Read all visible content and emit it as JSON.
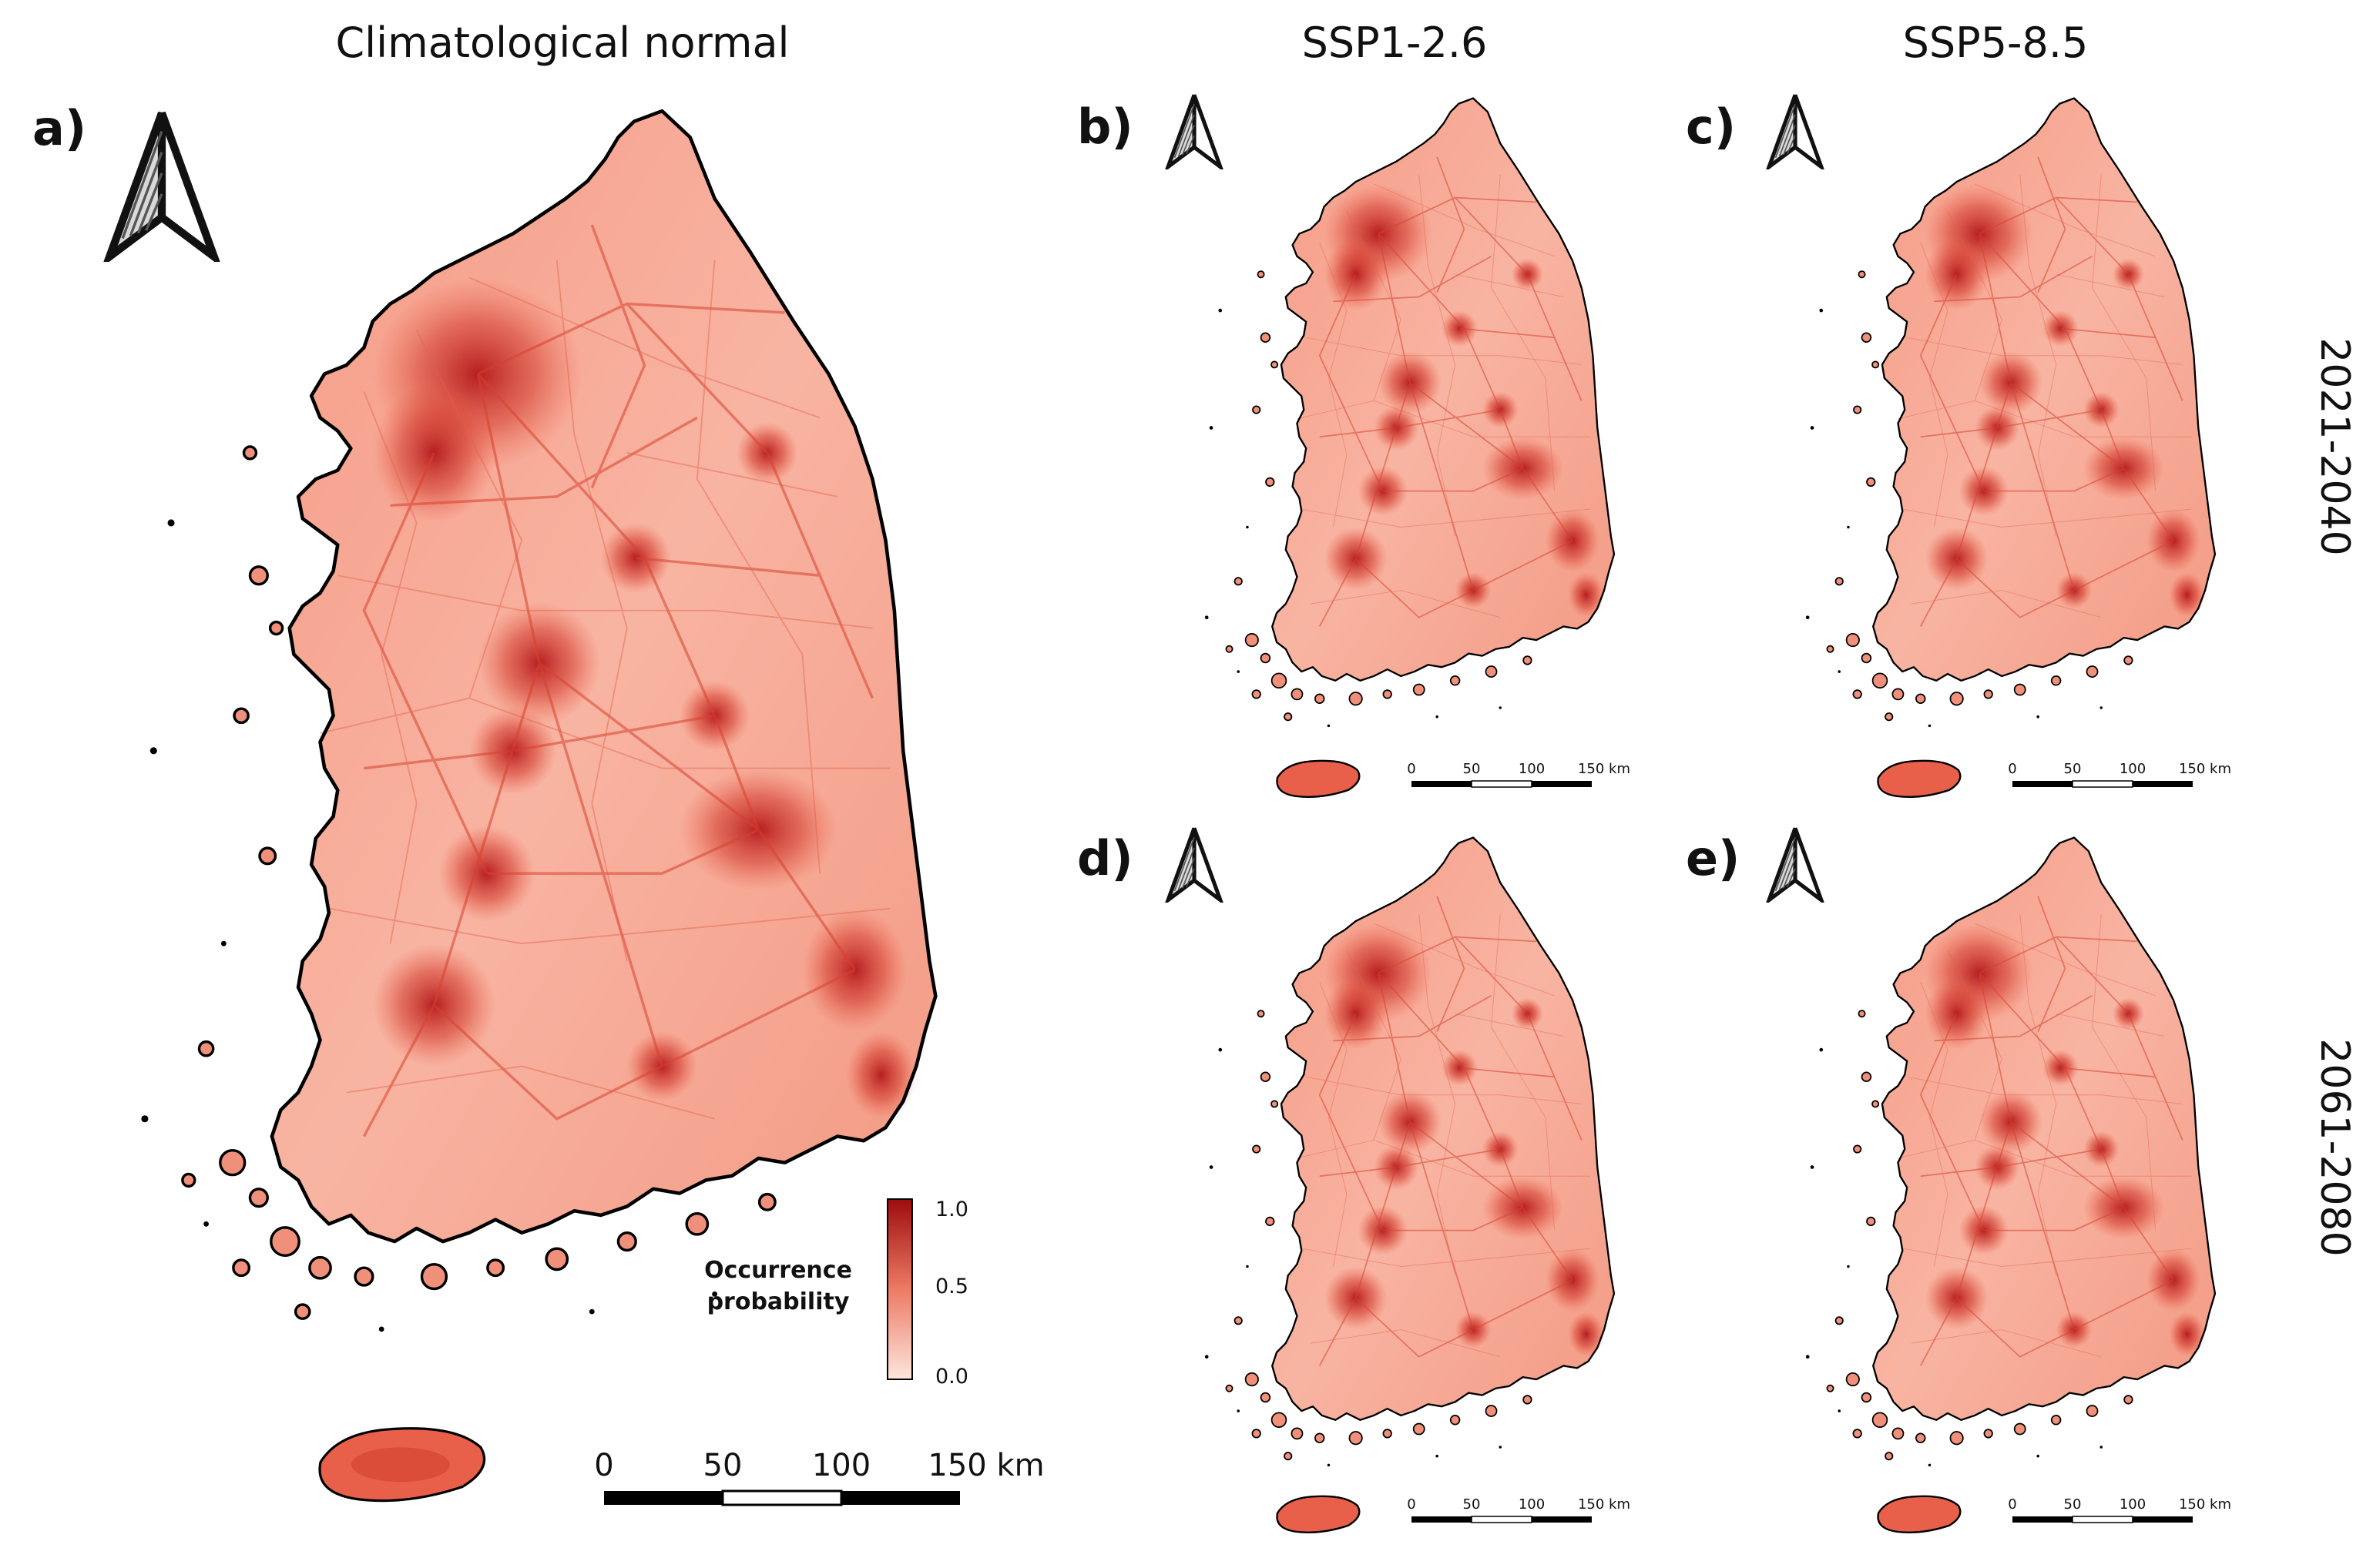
{
  "columns": {
    "normal": "Climatological normal",
    "ssp126": "SSP1-2.6",
    "ssp585": "SSP5-8.5"
  },
  "panels": {
    "a": "a)",
    "b": "b)",
    "c": "c)",
    "d": "d)",
    "e": "e)"
  },
  "periods": {
    "p1": "2021-2040",
    "p2": "2061-2080"
  },
  "scalebar": {
    "t0": "0",
    "t50": "50",
    "t100": "100",
    "t150": "150 km"
  },
  "legend": {
    "title_line1": "Occurrence",
    "title_line2": "probability",
    "max": "1.0",
    "mid": "0.5",
    "min": "0.0"
  },
  "colors": {
    "low": "#fde2da",
    "mid": "#ec7b64",
    "high": "#a40f10",
    "coast": "#000000"
  },
  "icons": [
    "north-arrow-icon"
  ]
}
